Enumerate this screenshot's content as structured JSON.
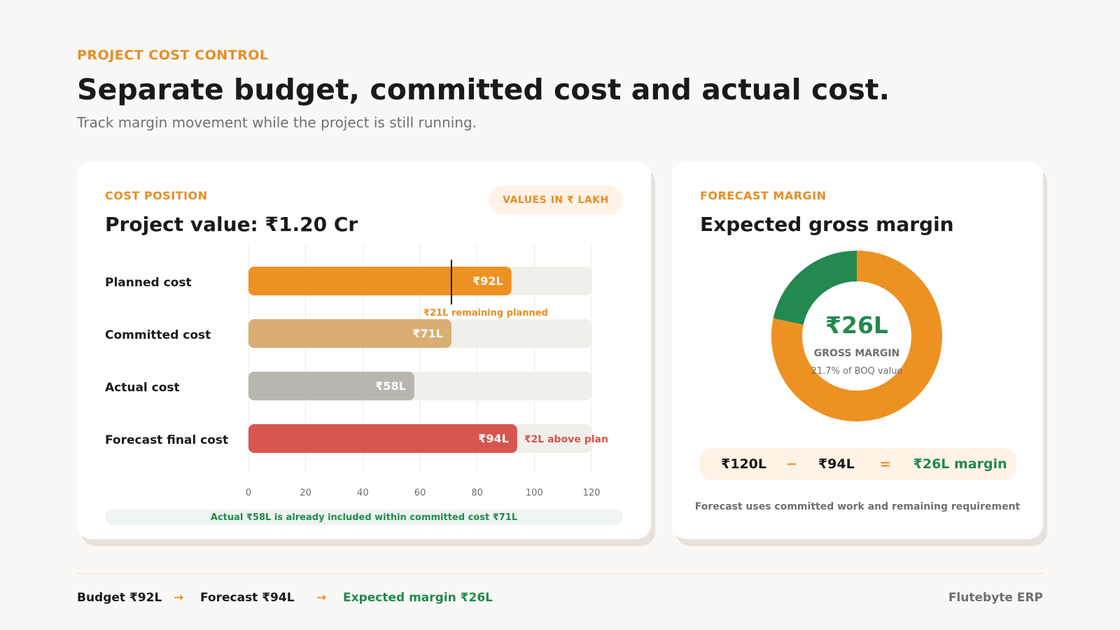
{
  "header": {
    "eyebrow": "PROJECT COST CONTROL",
    "title": "Separate budget, committed cost and actual cost.",
    "subtitle": "Track margin movement while the project is still running."
  },
  "cost_card": {
    "eyebrow": "COST POSITION",
    "title": "Project value: ₹1.20 Cr",
    "units_pill": "VALUES IN ₹ LAKH",
    "note": "Actual ₹58L is already included within committed cost ₹71L"
  },
  "margin_card": {
    "eyebrow": "FORECAST MARGIN",
    "title": "Expected gross margin",
    "equation": {
      "value": "₹120L",
      "minus": "−",
      "cost": "₹94L",
      "equals": "=",
      "result": "₹26L margin"
    },
    "footnote": "Forecast uses committed work and remaining requirement"
  },
  "footer": {
    "budget": "Budget ₹92L",
    "arrow": "→",
    "forecast": "Forecast ₹94L",
    "margin": "Expected margin ₹26L",
    "brand": "Flutebyte ERP"
  },
  "colors": {
    "accent": "#ea8c23",
    "green": "#23894e",
    "planned": "#ee9123",
    "committed": "#d8ae74",
    "actual": "#b9b6b0",
    "forecast": "#d65550",
    "track": "#f1efeb"
  },
  "chart_data": [
    {
      "type": "bar",
      "orientation": "horizontal",
      "categories": [
        "Planned cost",
        "Committed cost",
        "Actual cost",
        "Forecast final cost"
      ],
      "values": [
        92,
        71,
        58,
        94
      ],
      "value_labels": [
        "₹92L",
        "₹71L",
        "₹58L",
        "₹94L"
      ],
      "colors": [
        "#ee9123",
        "#d8ae74",
        "#b9b6b0",
        "#d65550"
      ],
      "xlim": [
        0,
        120
      ],
      "xticks": [
        0,
        20,
        40,
        60,
        80,
        100,
        120
      ],
      "grid": true,
      "marker": {
        "at": 71,
        "label": "₹21L remaining planned"
      },
      "annotations": [
        {
          "category": "Forecast final cost",
          "text": "₹2L above plan"
        }
      ]
    },
    {
      "type": "pie",
      "style": "donut",
      "slices": [
        {
          "label": "Forecast final cost",
          "value": 94,
          "color": "#ee9123"
        },
        {
          "label": "Gross margin",
          "value": 26,
          "color": "#23894e"
        }
      ],
      "center_value": "₹26L",
      "center_label": "GROSS MARGIN",
      "center_sub": "21.7% of BOQ value"
    }
  ]
}
